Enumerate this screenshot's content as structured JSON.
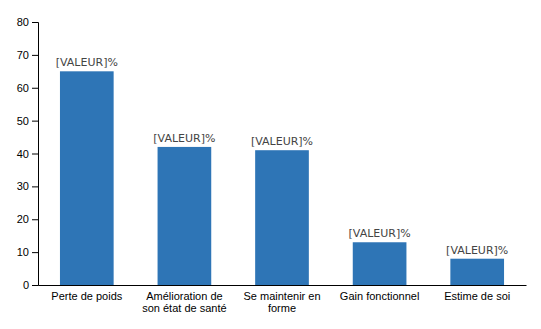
{
  "chart_data": {
    "type": "bar",
    "categories": [
      "Perte de poids",
      "Amélioration de\nson état de santé",
      "Se maintenir en\nforme",
      "Gain fonctionnel",
      "Estime de soi"
    ],
    "values": [
      65,
      42,
      41,
      13,
      8
    ],
    "value_labels": [
      "[VALEUR]%",
      "[VALEUR]%",
      "[VALEUR]%",
      "[VALEUR]%",
      "[VALEUR]%"
    ],
    "data_labels": true,
    "color": "#2E75B6",
    "ylim": [
      0,
      80
    ],
    "yticks": [
      0,
      10,
      20,
      30,
      40,
      50,
      60,
      70,
      80
    ],
    "grid": false
  }
}
